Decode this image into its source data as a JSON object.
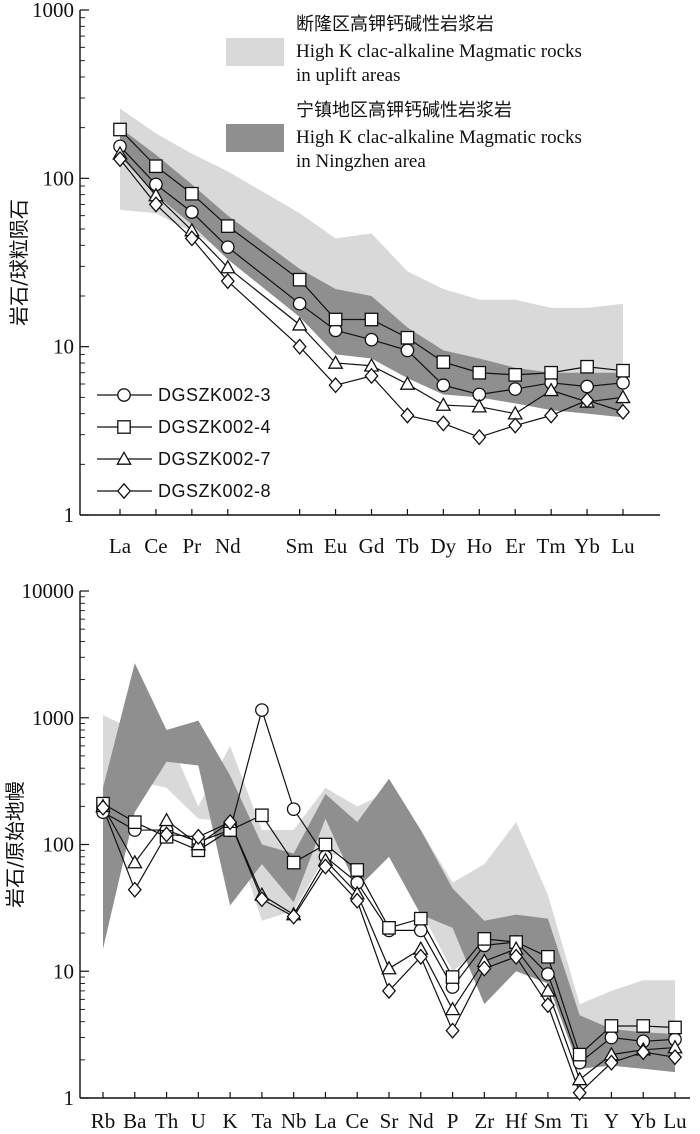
{
  "colors": {
    "light_band": "#d9d9d9",
    "dark_band": "#8f8f8f",
    "line": "#111111",
    "marker_fill": "#ffffff"
  },
  "chart_data": [
    {
      "type": "line",
      "yscale": "log",
      "ylim": [
        1,
        1000
      ],
      "yticks": [
        "1",
        "10",
        "100",
        "1000"
      ],
      "ylabel": "岩石/球粒陨石",
      "categories": [
        "La",
        "Ce",
        "Pr",
        "Nd",
        "Sm",
        "Eu",
        "Gd",
        "Tb",
        "Dy",
        "Ho",
        "Er",
        "Tm",
        "Yb",
        "Lu"
      ],
      "category_positions": [
        1,
        2,
        3,
        4,
        6,
        7,
        8,
        9,
        10,
        11,
        12,
        13,
        14,
        15
      ],
      "legend_bands": [
        {
          "label_cn": "断隆区高钾钙碱性岩浆岩",
          "label_en_1": "High K clac-alkaline Magmatic rocks",
          "label_en_2": "in uplift areas",
          "color": "#d9d9d9"
        },
        {
          "label_cn": "宁镇地区高钾钙碱性岩浆岩",
          "label_en_1": "High K clac-alkaline Magmatic rocks",
          "label_en_2": "in Ningzhen area",
          "color": "#8f8f8f"
        }
      ],
      "bands": [
        {
          "name": "uplift",
          "upper": [
            260,
            185,
            140,
            110,
            62,
            44,
            47,
            28,
            22,
            19,
            19,
            17,
            17,
            18
          ],
          "lower": [
            65,
            62,
            48,
            36,
            19,
            12,
            12,
            8,
            6,
            5,
            5,
            5,
            5,
            5
          ]
        },
        {
          "name": "ningzhen",
          "upper": [
            200,
            138,
            92,
            60,
            29,
            22,
            20,
            13,
            9.5,
            8.5,
            7.5,
            7.0,
            7.0,
            7.0
          ],
          "lower": [
            135,
            80,
            53,
            33,
            15,
            9,
            8.5,
            6.5,
            5.2,
            5.0,
            4.6,
            4.2,
            4.0,
            3.8
          ]
        }
      ],
      "series": [
        {
          "name": "DGSZK002-3",
          "marker": "circle",
          "values": [
            155,
            92,
            63,
            39,
            18,
            12.5,
            11,
            9.5,
            5.9,
            5.2,
            5.6,
            6.1,
            5.8,
            6.1
          ]
        },
        {
          "name": "DGSZK002-4",
          "marker": "square",
          "values": [
            195,
            118,
            81,
            52,
            25,
            14.5,
            14.5,
            11.3,
            8.1,
            7.0,
            6.8,
            7.0,
            7.6,
            7.2
          ]
        },
        {
          "name": "DGSZK002-7",
          "marker": "triangle",
          "values": [
            140,
            79,
            49,
            29.5,
            13.5,
            8.0,
            7.7,
            6.0,
            4.5,
            4.4,
            4.0,
            5.5,
            4.7,
            5.0
          ]
        },
        {
          "name": "DGSZK002-8",
          "marker": "diamond",
          "values": [
            130,
            70,
            44,
            24.5,
            10,
            5.9,
            6.7,
            3.9,
            3.5,
            2.9,
            3.4,
            3.9,
            4.8,
            4.1
          ]
        }
      ]
    },
    {
      "type": "line",
      "yscale": "log",
      "ylim": [
        1,
        10000
      ],
      "yticks": [
        "1",
        "10",
        "100",
        "1000",
        "10000"
      ],
      "ylabel": "岩石/原始地幔",
      "categories": [
        "Rb",
        "Ba",
        "Th",
        "U",
        "K",
        "Ta",
        "Nb",
        "La",
        "Ce",
        "Sr",
        "Nd",
        "P",
        "Zr",
        "Hf",
        "Sm",
        "Ti",
        "Y",
        "Yb",
        "Lu"
      ],
      "category_positions": [
        1,
        2,
        3,
        4,
        5,
        6,
        7,
        8,
        9,
        10,
        11,
        12,
        13,
        14,
        15,
        16,
        17,
        18,
        19
      ],
      "bands": [
        {
          "name": "uplift",
          "upper": [
            1050,
            800,
            750,
            200,
            600,
            130,
            130,
            280,
            200,
            260,
            130,
            50,
            70,
            150,
            40,
            5.5,
            7,
            8.5,
            8.5
          ],
          "lower": [
            200,
            320,
            280,
            160,
            150,
            25,
            30,
            80,
            90,
            80,
            30,
            10,
            16,
            16,
            8,
            2.3,
            2.0,
            2.0,
            2.0
          ]
        },
        {
          "name": "ningzhen",
          "upper": [
            280,
            2700,
            800,
            950,
            350,
            100,
            85,
            250,
            150,
            330,
            130,
            45,
            25,
            28,
            26,
            4.5,
            3.5,
            3.3,
            3.2
          ],
          "lower": [
            15,
            180,
            450,
            420,
            33,
            70,
            35,
            160,
            45,
            80,
            28,
            22,
            5.5,
            10,
            8,
            1.7,
            1.8,
            1.7,
            1.6
          ]
        }
      ],
      "series": [
        {
          "name": "DGSZK002-3",
          "marker": "circle",
          "values": [
            180,
            130,
            130,
            105,
            130,
            1150,
            190,
            80,
            50,
            21,
            21,
            7.5,
            16,
            17,
            9.5,
            1.9,
            3.0,
            2.8,
            2.9
          ]
        },
        {
          "name": "DGSZK002-4",
          "marker": "square",
          "values": [
            210,
            150,
            115,
            90,
            130,
            170,
            72,
            100,
            63,
            22,
            26,
            9,
            18,
            17,
            13,
            2.2,
            3.7,
            3.7,
            3.6
          ]
        },
        {
          "name": "DGSZK002-7",
          "marker": "triangle",
          "values": [
            200,
            72,
            155,
            100,
            150,
            40,
            28,
            75,
            41,
            10.5,
            15,
            5,
            12,
            15,
            7,
            1.4,
            2.2,
            2.4,
            2.5
          ]
        },
        {
          "name": "DGSZK002-8",
          "marker": "diamond",
          "values": [
            195,
            44,
            120,
            115,
            150,
            37,
            27,
            67,
            36,
            7,
            13,
            3.4,
            10.5,
            13,
            5.4,
            1.1,
            1.9,
            2.3,
            2.1
          ]
        }
      ]
    }
  ]
}
